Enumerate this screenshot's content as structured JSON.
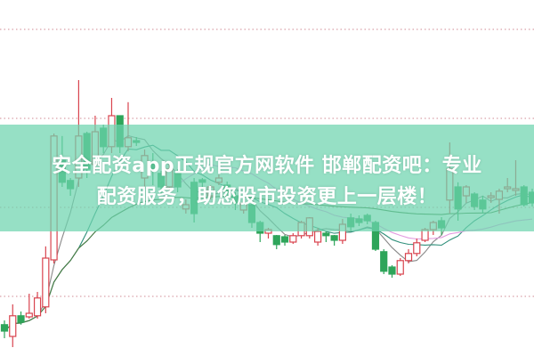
{
  "overlay": {
    "title_line1": "安全配资app正规官方网软件 邯郸配资吧：专业",
    "title_line2": "配资服务，助您股市投资更上一层楼！",
    "banner_color": "#6ed4af"
  },
  "chart_data": {
    "type": "candlestick",
    "title": "",
    "xlabel": "",
    "ylabel": "",
    "ylim": [
      0,
      100
    ],
    "grid": "horizontal dotted",
    "legend": "none",
    "colors": {
      "up": "#d9434e",
      "down": "#2ea55a",
      "grid": "#d08a93",
      "ma5": "#888888",
      "ma10": "#2f8f7a",
      "ma20": "#e39be0",
      "ma60": "#3f7f3f"
    },
    "candle_fields": [
      "open",
      "close",
      "high",
      "low"
    ],
    "candles": [
      [
        8.8,
        7.0,
        10,
        5
      ],
      [
        5.5,
        11.3,
        14.5,
        2.5
      ],
      [
        11.3,
        9.5,
        12.5,
        8.8
      ],
      [
        11,
        12,
        17.5,
        10.5
      ],
      [
        11.3,
        16.3,
        18,
        10.5
      ],
      [
        13.8,
        27.5,
        30.8,
        12
      ],
      [
        27,
        61.8,
        62.5,
        26
      ],
      [
        55,
        48.8,
        61.8,
        47.5
      ],
      [
        49.3,
        47,
        50,
        45
      ],
      [
        50,
        61.8,
        77.5,
        47.5
      ],
      [
        62.5,
        52.5,
        63,
        50
      ],
      [
        53.8,
        63,
        67.5,
        52
      ],
      [
        64,
        58.8,
        65,
        57
      ],
      [
        58.8,
        67.5,
        72.5,
        57
      ],
      [
        67.5,
        58.8,
        67.5,
        57
      ],
      [
        58.8,
        61.3,
        71.3,
        57.5
      ],
      [
        60.5,
        60,
        61.5,
        59
      ],
      [
        50,
        56.3,
        58,
        47
      ],
      [
        54,
        52,
        57,
        48
      ],
      [
        51.3,
        47.5,
        52,
        45
      ],
      [
        47.5,
        52.5,
        54,
        46
      ],
      [
        51.3,
        47.5,
        52.5,
        46
      ],
      [
        41.3,
        42.5,
        44,
        40
      ],
      [
        48.8,
        40,
        50,
        37.5
      ],
      [
        49.5,
        48.8,
        50,
        47.5
      ],
      [
        45,
        47.5,
        48,
        44
      ],
      [
        48.8,
        50,
        51,
        48
      ],
      [
        48,
        46,
        49,
        45
      ],
      [
        45,
        43,
        46,
        41
      ],
      [
        41,
        43,
        44,
        40
      ],
      [
        42.5,
        37.5,
        43,
        36
      ],
      [
        37.5,
        34.5,
        38,
        32
      ],
      [
        34.5,
        35.5,
        36,
        33
      ],
      [
        33.8,
        31.3,
        34,
        30
      ],
      [
        33.5,
        32,
        34,
        31
      ],
      [
        32,
        33.8,
        34.5,
        31.5
      ],
      [
        33.8,
        37.5,
        38,
        33
      ],
      [
        33.8,
        38.8,
        39,
        33
      ],
      [
        32,
        35,
        36,
        31
      ],
      [
        34.5,
        33.8,
        35,
        32
      ],
      [
        33.8,
        32.5,
        34,
        31
      ],
      [
        32.5,
        37,
        38.5,
        31.5
      ],
      [
        38.8,
        36.3,
        40,
        35
      ],
      [
        38.5,
        37.5,
        39.5,
        36.5
      ],
      [
        39.5,
        38,
        40,
        37
      ],
      [
        37.5,
        30,
        38,
        29.5
      ],
      [
        29.3,
        23.8,
        30,
        23
      ],
      [
        25,
        23,
        25.5,
        22
      ],
      [
        23,
        26.8,
        27.5,
        22.5
      ],
      [
        26.8,
        28.8,
        30,
        26
      ],
      [
        28.8,
        31.8,
        33,
        28
      ],
      [
        32.5,
        35.5,
        36,
        32
      ],
      [
        35.5,
        37.5,
        38,
        34
      ],
      [
        38,
        36,
        39,
        34
      ],
      [
        43.8,
        52.5,
        60,
        40
      ],
      [
        47.5,
        41.3,
        48.8,
        38
      ],
      [
        45,
        47.5,
        48,
        43
      ],
      [
        45.5,
        42,
        46,
        41
      ],
      [
        43.8,
        41.3,
        45,
        40
      ],
      [
        44.5,
        45,
        46,
        43
      ],
      [
        44,
        46.3,
        47,
        40
      ],
      [
        47,
        47.5,
        50,
        46
      ],
      [
        46.5,
        47,
        55,
        45
      ],
      [
        47.5,
        42.5,
        48,
        42
      ],
      [
        46,
        43,
        47,
        42
      ]
    ],
    "moving_averages": [
      5,
      10,
      20,
      60
    ]
  }
}
